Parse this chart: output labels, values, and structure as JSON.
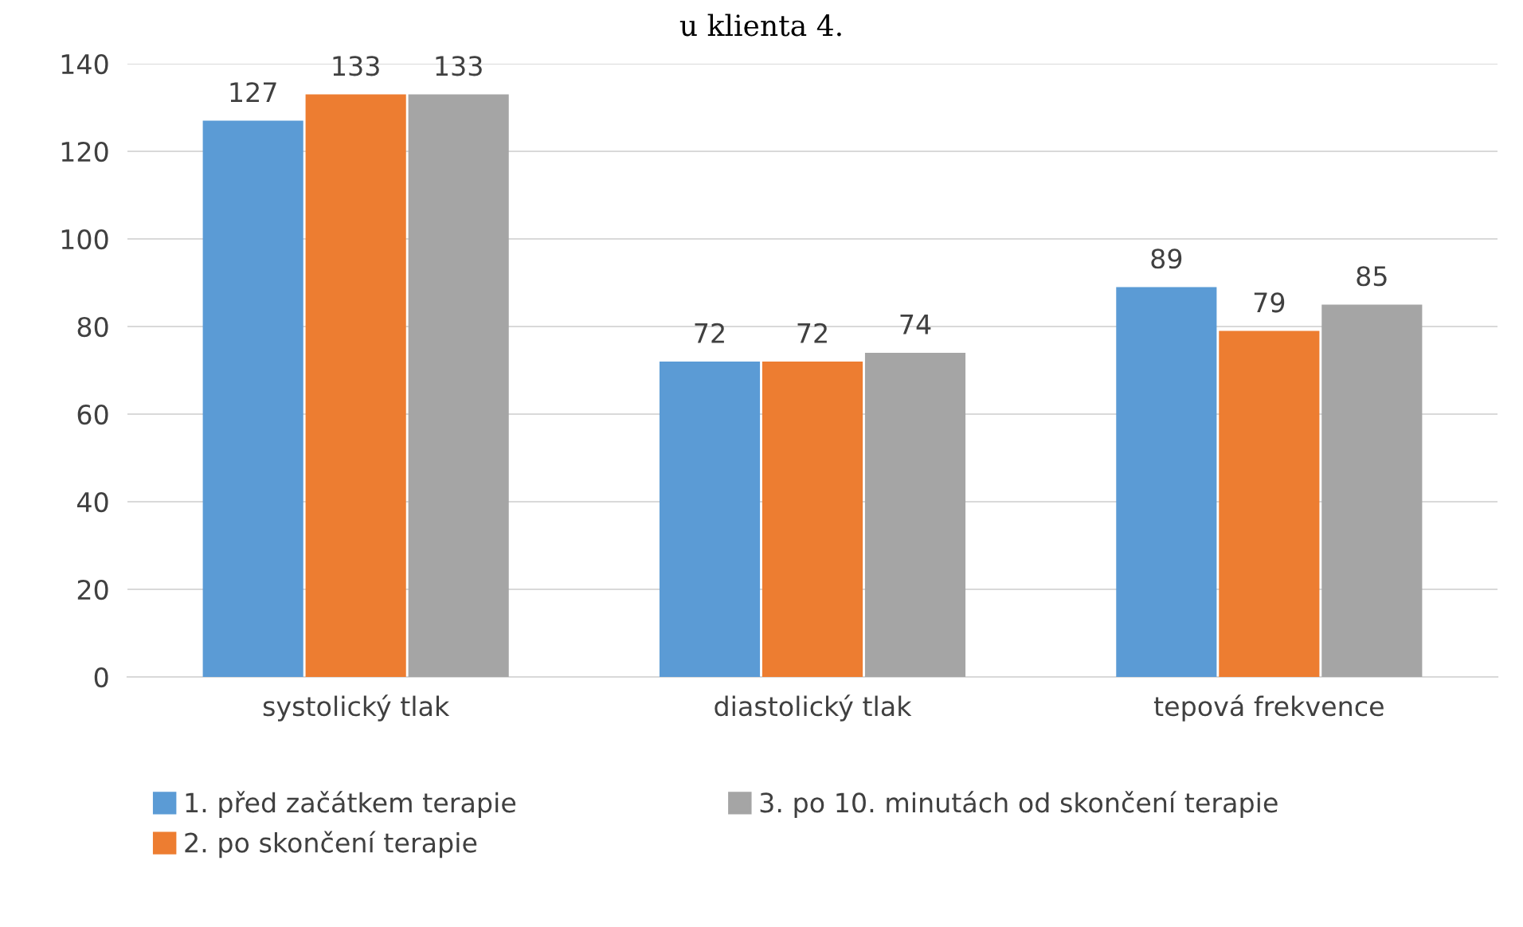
{
  "chart_data": {
    "type": "bar",
    "title": "u klienta 4.",
    "categories": [
      "systolický tlak",
      "diastolický tlak",
      "tepová frekvence"
    ],
    "series": [
      {
        "name": "1. před začátkem terapie",
        "color": "#5b9bd5",
        "values": [
          127,
          72,
          89
        ]
      },
      {
        "name": "2. po skončení terapie",
        "color": "#ed7d31",
        "values": [
          133,
          72,
          79
        ]
      },
      {
        "name": "3. po 10. minutách od skončení terapie",
        "color": "#a5a5a5",
        "values": [
          133,
          74,
          85
        ]
      }
    ],
    "ylim": [
      0,
      140
    ],
    "yticks": [
      0,
      20,
      40,
      60,
      80,
      100,
      120,
      140
    ],
    "grid": "y",
    "data_labels": true,
    "legend": "bottom"
  }
}
